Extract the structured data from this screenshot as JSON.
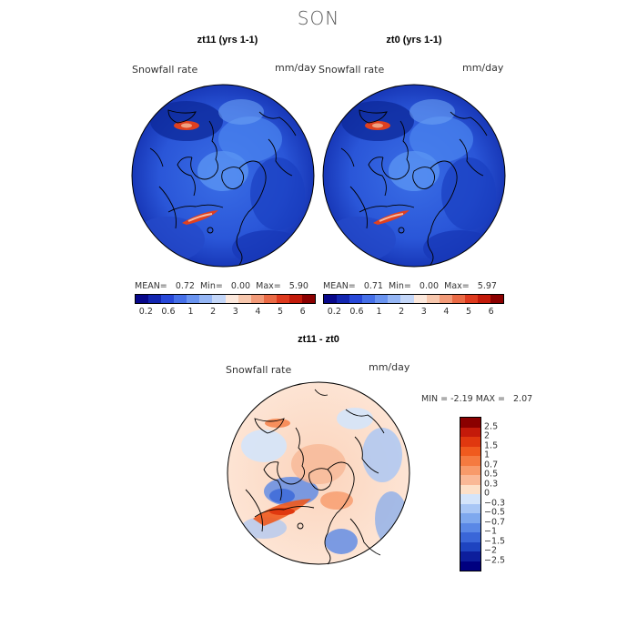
{
  "season": "SON",
  "panels": [
    {
      "title": "zt11 (yrs 1-1)",
      "variable": "Snowfall rate",
      "units": "mm/day",
      "stats": {
        "mean_label": "MEAN=",
        "mean": "0.72",
        "min_label": "Min=",
        "min": "0.00",
        "max_label": "Max=",
        "max": "5.90"
      }
    },
    {
      "title": "zt0 (yrs 1-1)",
      "variable": "Snowfall rate",
      "units": "mm/day",
      "stats": {
        "mean_label": "MEAN=",
        "mean": "0.71",
        "min_label": "Min=",
        "min": "0.00",
        "max_label": "Max=",
        "max": "5.97"
      }
    }
  ],
  "colorbar_abs": {
    "colors": [
      "#08088a",
      "#1326b0",
      "#2848d8",
      "#4670e8",
      "#6a94f0",
      "#95b6f5",
      "#c3d6f8",
      "#fbe8dc",
      "#f7c7ad",
      "#f29a78",
      "#ea6a45",
      "#de3a1e",
      "#c21a0a",
      "#8b0000"
    ],
    "ticks": [
      "0.2",
      "0.6",
      "1",
      "2",
      "3",
      "4",
      "5",
      "6"
    ]
  },
  "diff": {
    "title": "zt11 - zt0",
    "variable": "Snowfall rate",
    "units": "mm/day",
    "min_label": "MIN =",
    "min": "-2.19",
    "max_label": "MAX =",
    "max": "2.07",
    "colorbar": {
      "colors": [
        "#8b0000",
        "#c41a0a",
        "#e0380f",
        "#f05a1e",
        "#f57a40",
        "#f89a6a",
        "#fab896",
        "#fde0c8",
        "#d4e4fa",
        "#a8c6f5",
        "#7ea8ee",
        "#5a88e6",
        "#3a66d8",
        "#1e44c0",
        "#0d1e9c",
        "#000080"
      ],
      "ticks": [
        "2.5",
        "2",
        "1.5",
        "1",
        "0.7",
        "0.5",
        "0.3",
        "0",
        "−0.3",
        "−0.5",
        "−0.7",
        "−1",
        "−1.5",
        "−2",
        "−2.5"
      ]
    }
  }
}
